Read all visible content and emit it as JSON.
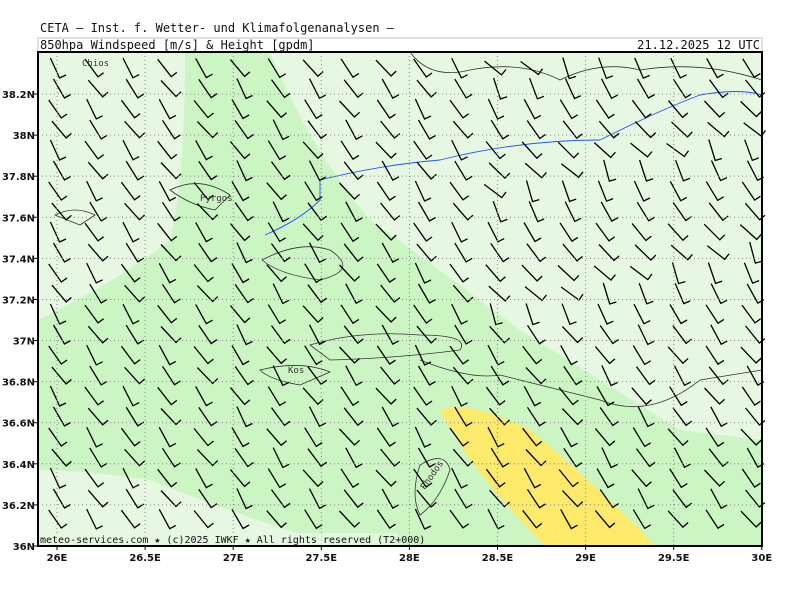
{
  "header": {
    "organization": "CETA – Inst. f. Wetter- und Klimafolgenanalysen –",
    "title": "850hpa Windspeed [m/s] & Height [gpdm]",
    "datetime": "21.12.2025 12 UTC"
  },
  "axes": {
    "lat_labels": [
      "38.2N",
      "38N",
      "37.8N",
      "37.6N",
      "37.4N",
      "37.2N",
      "37N",
      "36.8N",
      "36.6N",
      "36.4N",
      "36.2N",
      "36N"
    ],
    "lon_labels": [
      "26E",
      "26.5E",
      "27E",
      "27.5E",
      "28E",
      "28.5E",
      "29E",
      "29.5E",
      "30E"
    ]
  },
  "places": [
    "Chios",
    "Pyrgos",
    "Kos",
    "Rhodos"
  ],
  "footer": "meteo-services.com ★ (c)2025 IWKF ★ All rights reserved (T2+000)"
}
